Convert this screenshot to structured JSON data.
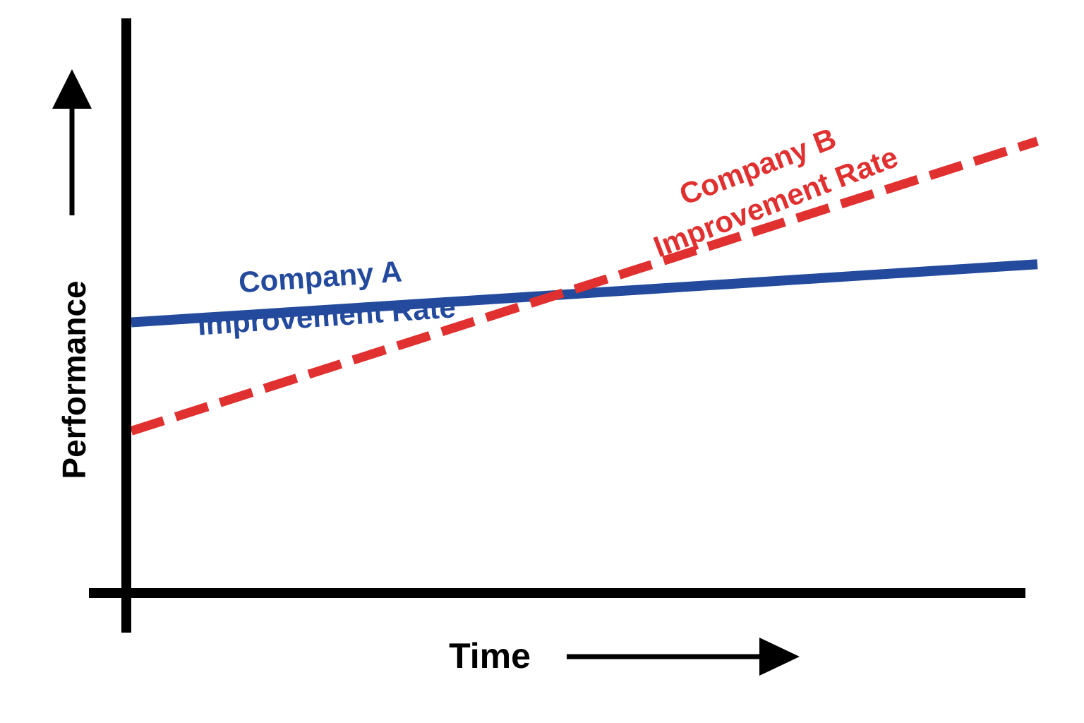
{
  "chart_data": {
    "type": "line",
    "title": "",
    "xlabel": "Time",
    "ylabel": "Performance",
    "grid": false,
    "axes_numeric": false,
    "xlim": [
      0,
      100
    ],
    "ylim": [
      0,
      100
    ],
    "series": [
      {
        "name_lines": [
          "Company A",
          "Improvement Rate"
        ],
        "color": "#234a9c",
        "style": "solid",
        "x": [
          0,
          100
        ],
        "y": [
          49.5,
          65.7
        ]
      },
      {
        "name_lines": [
          "Company B",
          "Improvement Rate"
        ],
        "color": "#e03030",
        "style": "dashed",
        "x": [
          0,
          100
        ],
        "y": [
          19.2,
          100
        ]
      }
    ]
  }
}
